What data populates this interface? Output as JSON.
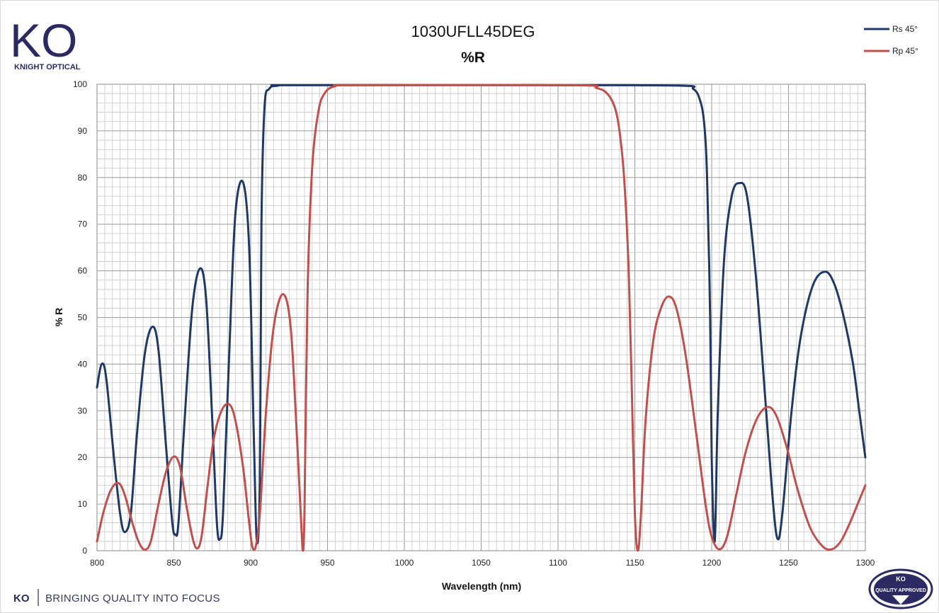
{
  "branding": {
    "logo_letters": "KO",
    "logo_subtitle": "KNIGHT OPTICAL",
    "footer_ko": "KO",
    "footer_tagline": "BRINGING QUALITY INTO FOCUS",
    "badge_ko": "KO",
    "badge_text": "QUALITY APPROVED",
    "brand_color": "#2c2a63"
  },
  "chart_data": {
    "type": "line",
    "title": "1030UFLL45DEG",
    "subtitle": "%R",
    "xlabel": "Wavelength (nm)",
    "ylabel": "% R",
    "xlim": [
      800,
      1300
    ],
    "ylim": [
      0,
      100
    ],
    "x_ticks": [
      "800",
      "850",
      "900",
      "950",
      "1000",
      "1050",
      "1100",
      "1150",
      "1200",
      "1250",
      "1300"
    ],
    "y_ticks": [
      "0",
      "10",
      "20",
      "30",
      "40",
      "50",
      "60",
      "70",
      "80",
      "90",
      "100"
    ],
    "grid": true,
    "legend_position": "top-right",
    "series": [
      {
        "name": "Rs 45°",
        "color": "#1f3864",
        "points": [
          [
            800,
            35
          ],
          [
            803,
            40
          ],
          [
            806,
            37
          ],
          [
            811,
            20
          ],
          [
            815,
            8
          ],
          [
            818,
            4
          ],
          [
            822,
            8
          ],
          [
            826,
            25
          ],
          [
            831,
            42
          ],
          [
            836,
            48
          ],
          [
            840,
            43
          ],
          [
            845,
            22
          ],
          [
            849,
            6
          ],
          [
            851,
            3.5
          ],
          [
            853,
            6
          ],
          [
            857,
            28
          ],
          [
            862,
            52
          ],
          [
            867,
            60.5
          ],
          [
            871,
            54
          ],
          [
            875,
            28
          ],
          [
            878,
            6
          ],
          [
            880,
            2.5
          ],
          [
            882,
            8
          ],
          [
            886,
            42
          ],
          [
            890,
            72
          ],
          [
            895,
            79
          ],
          [
            899,
            65
          ],
          [
            902,
            25
          ],
          [
            904,
            2
          ],
          [
            906,
            15
          ],
          [
            907,
            70
          ],
          [
            909,
            95
          ],
          [
            912,
            99
          ],
          [
            918,
            99.7
          ],
          [
            930,
            99.8
          ],
          [
            1100,
            99.8
          ],
          [
            1180,
            99.7
          ],
          [
            1188,
            99
          ],
          [
            1192,
            97
          ],
          [
            1195,
            92
          ],
          [
            1197,
            80
          ],
          [
            1199,
            50
          ],
          [
            1200,
            20
          ],
          [
            1202,
            2
          ],
          [
            1204,
            30
          ],
          [
            1208,
            62
          ],
          [
            1213,
            76
          ],
          [
            1218,
            78.8
          ],
          [
            1223,
            76
          ],
          [
            1229,
            58
          ],
          [
            1235,
            32
          ],
          [
            1240,
            10
          ],
          [
            1243,
            2.5
          ],
          [
            1246,
            8
          ],
          [
            1252,
            30
          ],
          [
            1258,
            46
          ],
          [
            1266,
            57
          ],
          [
            1274,
            59.8
          ],
          [
            1280,
            57
          ],
          [
            1286,
            50
          ],
          [
            1292,
            40
          ],
          [
            1296,
            30
          ],
          [
            1300,
            20
          ]
        ]
      },
      {
        "name": "Rp 45°",
        "color": "#c0504d",
        "points": [
          [
            800,
            2
          ],
          [
            804,
            8
          ],
          [
            809,
            13
          ],
          [
            814,
            14.5
          ],
          [
            818,
            12
          ],
          [
            823,
            6
          ],
          [
            827,
            2
          ],
          [
            831,
            0.2
          ],
          [
            835,
            2
          ],
          [
            840,
            10
          ],
          [
            845,
            17
          ],
          [
            850,
            20.2
          ],
          [
            854,
            18
          ],
          [
            858,
            10
          ],
          [
            862,
            3
          ],
          [
            865,
            0.5
          ],
          [
            868,
            3
          ],
          [
            872,
            14
          ],
          [
            876,
            24
          ],
          [
            881,
            30
          ],
          [
            886,
            31.4
          ],
          [
            890,
            28
          ],
          [
            895,
            18
          ],
          [
            899,
            6
          ],
          [
            901,
            1
          ],
          [
            903,
            0.5
          ],
          [
            906,
            8
          ],
          [
            910,
            30
          ],
          [
            915,
            48
          ],
          [
            921,
            55
          ],
          [
            926,
            48
          ],
          [
            930,
            25
          ],
          [
            933,
            5
          ],
          [
            934,
            0
          ],
          [
            935,
            8
          ],
          [
            937,
            55
          ],
          [
            940,
            82
          ],
          [
            944,
            94
          ],
          [
            948,
            98
          ],
          [
            955,
            99.6
          ],
          [
            970,
            99.8
          ],
          [
            1110,
            99.8
          ],
          [
            1125,
            99.2
          ],
          [
            1132,
            98
          ],
          [
            1137,
            95
          ],
          [
            1140,
            90
          ],
          [
            1143,
            80
          ],
          [
            1146,
            60
          ],
          [
            1148,
            35
          ],
          [
            1150,
            8
          ],
          [
            1152,
            0
          ],
          [
            1154,
            8
          ],
          [
            1157,
            28
          ],
          [
            1162,
            45
          ],
          [
            1167,
            52
          ],
          [
            1172,
            54.5
          ],
          [
            1177,
            52
          ],
          [
            1183,
            42
          ],
          [
            1190,
            25
          ],
          [
            1196,
            10
          ],
          [
            1200,
            3
          ],
          [
            1205,
            0.3
          ],
          [
            1210,
            3
          ],
          [
            1216,
            12
          ],
          [
            1222,
            21
          ],
          [
            1229,
            28
          ],
          [
            1236,
            30.8
          ],
          [
            1242,
            29
          ],
          [
            1249,
            22
          ],
          [
            1256,
            13
          ],
          [
            1264,
            5
          ],
          [
            1272,
            1
          ],
          [
            1278,
            0.3
          ],
          [
            1284,
            2
          ],
          [
            1290,
            6
          ],
          [
            1295,
            10
          ],
          [
            1300,
            14
          ]
        ]
      }
    ]
  }
}
